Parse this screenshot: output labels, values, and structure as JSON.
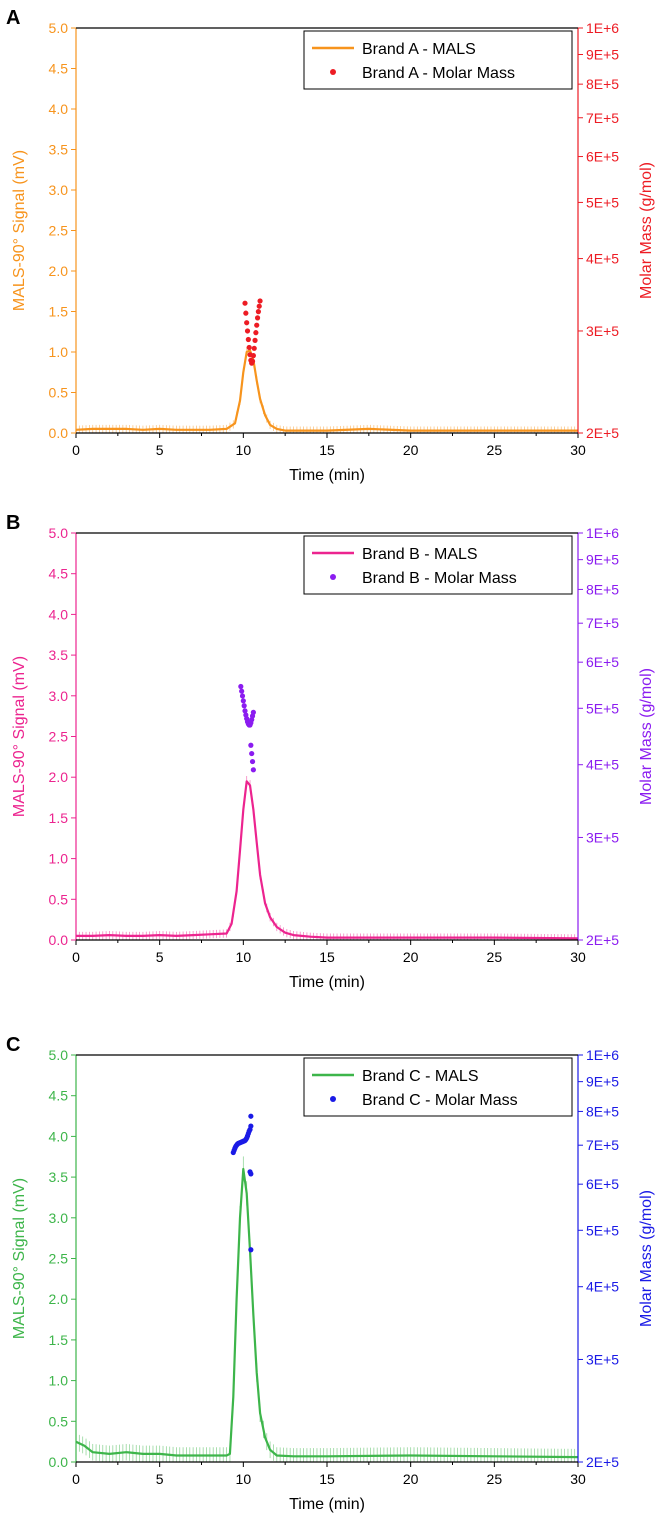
{
  "chart_data": [
    {
      "panel_label": "A",
      "type": "line",
      "xlabel": "Time (min)",
      "ylabel": "MALS-90° Signal (mV)",
      "y2label": "Molar Mass (g/mol)",
      "xlim": [
        0,
        30
      ],
      "ylim": [
        0,
        5
      ],
      "y2lim": [
        200000,
        1000000
      ],
      "y2scale": "log",
      "xticks": [
        "0",
        "5",
        "10",
        "15",
        "20",
        "25",
        "30"
      ],
      "yticks": [
        "0.0",
        "0.5",
        "1.0",
        "1.5",
        "2.0",
        "2.5",
        "3.0",
        "3.5",
        "4.0",
        "4.5",
        "5.0"
      ],
      "y2ticks": [
        "2E+5",
        "3E+5",
        "4E+5",
        "5E+5",
        "6E+5",
        "7E+5",
        "8E+5",
        "9E+5",
        "1E+6"
      ],
      "legend_position": "top-right",
      "colors": {
        "left": "#F7941D",
        "right": "#ED1C24"
      },
      "series": [
        {
          "name": "Brand A - MALS",
          "kind": "line",
          "x": [
            0,
            1,
            2,
            3,
            4,
            5,
            6,
            7,
            8,
            9,
            9.5,
            9.8,
            10.0,
            10.2,
            10.4,
            10.6,
            10.8,
            11.0,
            11.3,
            11.6,
            12.0,
            12.5,
            13,
            15,
            17.5,
            20,
            25,
            30
          ],
          "y": [
            0.04,
            0.05,
            0.05,
            0.05,
            0.04,
            0.05,
            0.04,
            0.04,
            0.04,
            0.05,
            0.12,
            0.4,
            0.75,
            1.0,
            1.02,
            0.9,
            0.65,
            0.42,
            0.22,
            0.1,
            0.05,
            0.03,
            0.03,
            0.03,
            0.05,
            0.03,
            0.03,
            0.03
          ],
          "error": 0.05
        },
        {
          "name": "Brand A - Molar Mass",
          "kind": "scatter",
          "x": [
            10.1,
            10.15,
            10.2,
            10.25,
            10.3,
            10.35,
            10.4,
            10.45,
            10.5,
            10.55,
            10.6,
            10.65,
            10.7,
            10.75,
            10.8,
            10.85,
            10.9,
            10.95,
            11.0
          ],
          "y": [
            335000,
            322000,
            310000,
            300000,
            290000,
            281000,
            273000,
            267000,
            264000,
            266000,
            272000,
            280000,
            289000,
            298000,
            307000,
            316000,
            324000,
            331000,
            338000
          ]
        }
      ]
    },
    {
      "panel_label": "B",
      "type": "line",
      "xlabel": "Time (min)",
      "ylabel": "MALS-90° Signal (mV)",
      "y2label": "Molar Mass (g/mol)",
      "xlim": [
        0,
        30
      ],
      "ylim": [
        0,
        5
      ],
      "y2lim": [
        200000,
        1000000
      ],
      "y2scale": "log",
      "xticks": [
        "0",
        "5",
        "10",
        "15",
        "20",
        "25",
        "30"
      ],
      "yticks": [
        "0.0",
        "0.5",
        "1.0",
        "1.5",
        "2.0",
        "2.5",
        "3.0",
        "3.5",
        "4.0",
        "4.5",
        "5.0"
      ],
      "y2ticks": [
        "2E+5",
        "3E+5",
        "4E+5",
        "5E+5",
        "6E+5",
        "7E+5",
        "8E+5",
        "9E+5",
        "1E+6"
      ],
      "legend_position": "top-right",
      "colors": {
        "left": "#EC248F",
        "right": "#8B1CF0"
      },
      "series": [
        {
          "name": "Brand B - MALS",
          "kind": "line",
          "x": [
            0,
            1,
            2,
            3,
            4,
            5,
            6,
            7,
            8,
            9,
            9.3,
            9.6,
            9.8,
            10.0,
            10.2,
            10.4,
            10.6,
            10.8,
            11.0,
            11.3,
            11.6,
            12.0,
            12.5,
            13,
            14,
            15,
            20,
            25,
            30
          ],
          "y": [
            0.05,
            0.05,
            0.06,
            0.05,
            0.05,
            0.06,
            0.05,
            0.06,
            0.07,
            0.08,
            0.2,
            0.6,
            1.1,
            1.6,
            1.95,
            1.9,
            1.6,
            1.2,
            0.8,
            0.45,
            0.28,
            0.16,
            0.09,
            0.06,
            0.04,
            0.03,
            0.03,
            0.03,
            0.02
          ],
          "error": 0.05
        },
        {
          "name": "Brand B - Molar Mass",
          "kind": "scatter",
          "x": [
            9.85,
            9.9,
            9.95,
            10.0,
            10.05,
            10.1,
            10.15,
            10.2,
            10.25,
            10.3,
            10.35,
            10.4,
            10.45,
            10.5,
            10.55,
            10.6,
            10.45,
            10.5,
            10.55,
            10.6
          ],
          "y": [
            545000,
            535000,
            525000,
            515000,
            505000,
            495000,
            487000,
            480000,
            474000,
            470000,
            468000,
            468000,
            472000,
            478000,
            485000,
            492000,
            432000,
            418000,
            405000,
            392000
          ]
        }
      ]
    },
    {
      "panel_label": "C",
      "type": "line",
      "xlabel": "Time (min)",
      "ylabel": "MALS-90° Signal (mV)",
      "y2label": "Molar Mass (g/mol)",
      "xlim": [
        0,
        30
      ],
      "ylim": [
        0,
        5
      ],
      "y2lim": [
        200000,
        1000000
      ],
      "y2scale": "log",
      "xticks": [
        "0",
        "5",
        "10",
        "15",
        "20",
        "25",
        "30"
      ],
      "yticks": [
        "0.0",
        "0.5",
        "1.0",
        "1.5",
        "2.0",
        "2.5",
        "3.0",
        "3.5",
        "4.0",
        "4.5",
        "5.0"
      ],
      "y2ticks": [
        "2E+5",
        "3E+5",
        "4E+5",
        "5E+5",
        "6E+5",
        "7E+5",
        "8E+5",
        "9E+5",
        "1E+6"
      ],
      "legend_position": "top-right",
      "colors": {
        "left": "#3DB54A",
        "right": "#1A1AE6"
      },
      "series": [
        {
          "name": "Brand C - MALS",
          "kind": "line",
          "x": [
            0,
            0.5,
            1,
            2,
            3,
            4,
            5,
            6,
            7,
            8,
            9,
            9.2,
            9.4,
            9.6,
            9.8,
            10.0,
            10.2,
            10.4,
            10.6,
            10.8,
            11.0,
            11.3,
            11.6,
            12.0,
            13,
            15,
            20,
            25,
            30
          ],
          "y": [
            0.25,
            0.2,
            0.12,
            0.1,
            0.12,
            0.1,
            0.1,
            0.08,
            0.08,
            0.08,
            0.08,
            0.1,
            0.8,
            2.0,
            3.0,
            3.6,
            3.3,
            2.6,
            1.8,
            1.1,
            0.6,
            0.3,
            0.15,
            0.08,
            0.07,
            0.07,
            0.08,
            0.07,
            0.06
          ],
          "error": 0.1
        },
        {
          "name": "Brand C - Molar Mass",
          "kind": "scatter",
          "x": [
            9.4,
            9.45,
            9.5,
            9.55,
            9.6,
            9.65,
            9.7,
            9.75,
            9.8,
            9.85,
            9.9,
            9.95,
            10.0,
            10.05,
            10.1,
            10.15,
            10.2,
            10.25,
            10.3,
            10.35,
            10.4,
            10.45,
            10.4,
            10.45,
            10.45,
            10.45
          ],
          "y": [
            680000,
            686000,
            692000,
            697000,
            700000,
            703000,
            705000,
            706000,
            707000,
            708000,
            709000,
            710000,
            711000,
            712000,
            713000,
            716000,
            720000,
            726000,
            733000,
            740000,
            745000,
            785000,
            630000,
            625000,
            463000,
            755000
          ]
        }
      ]
    }
  ]
}
